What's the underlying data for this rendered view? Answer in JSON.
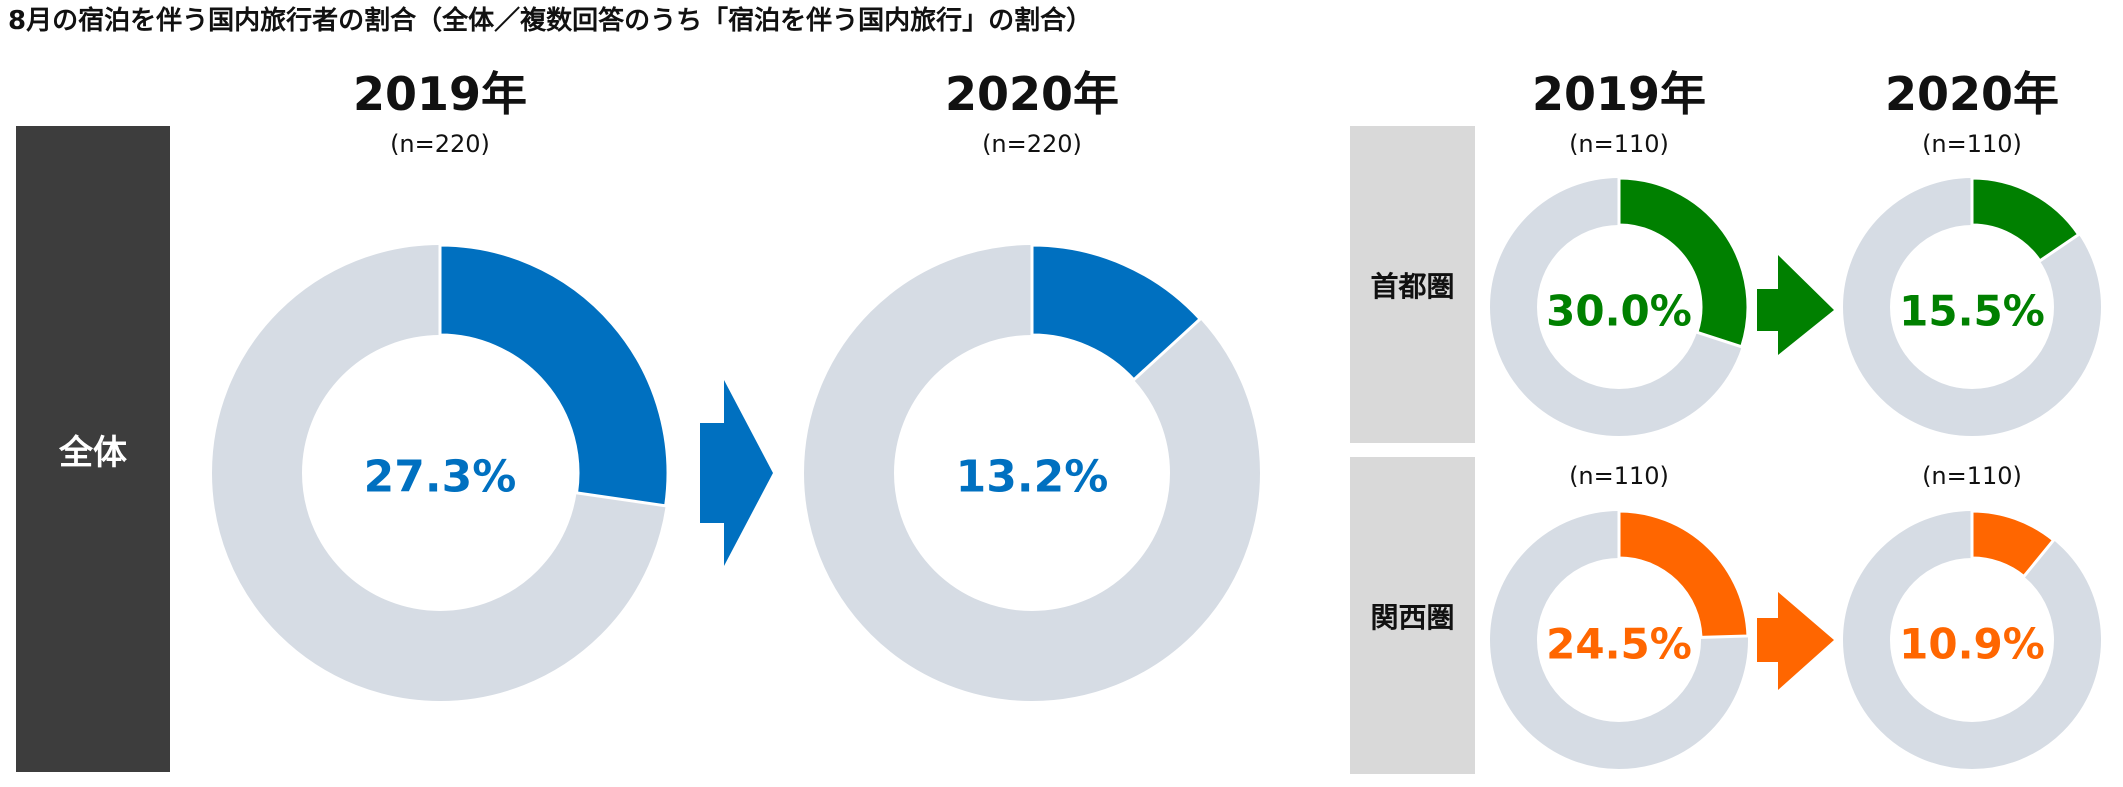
{
  "title": "8月の宿泊を伴う国内旅行者の割合（全体／複数回答のうち「宿泊を伴う国内旅行」の割合）",
  "labels": {
    "zentai": "全体",
    "shutoken": "首都圏",
    "kansaiken": "関西圏"
  },
  "years": {
    "y2019": "2019年",
    "y2020": "2020年"
  },
  "colors": {
    "blue": "#0070c0",
    "green": "#008000",
    "orange": "#ff6600",
    "ring": "#d6dce4",
    "side_dark": "#3d3d3d",
    "side_light": "#d9d9d9"
  },
  "chart_data": [
    {
      "type": "donut",
      "group": "全体",
      "year": "2019年",
      "n_label": "(n=220)",
      "value": 27.3,
      "value_label": "27.3%",
      "color": "#0070c0"
    },
    {
      "type": "donut",
      "group": "全体",
      "year": "2020年",
      "n_label": "(n=220)",
      "value": 13.2,
      "value_label": "13.2%",
      "color": "#0070c0"
    },
    {
      "type": "donut",
      "group": "首都圏",
      "year": "2019年",
      "n_label": "(n=110)",
      "value": 30.0,
      "value_label": "30.0%",
      "color": "#008000"
    },
    {
      "type": "donut",
      "group": "首都圏",
      "year": "2020年",
      "n_label": "(n=110)",
      "value": 15.5,
      "value_label": "15.5%",
      "color": "#008000"
    },
    {
      "type": "donut",
      "group": "関西圏",
      "year": "2019年",
      "n_label": "(n=110)",
      "value": 24.5,
      "value_label": "24.5%",
      "color": "#ff6600"
    },
    {
      "type": "donut",
      "group": "関西圏",
      "year": "2020年",
      "n_label": "(n=110)",
      "value": 10.9,
      "value_label": "10.9%",
      "color": "#ff6600"
    }
  ]
}
